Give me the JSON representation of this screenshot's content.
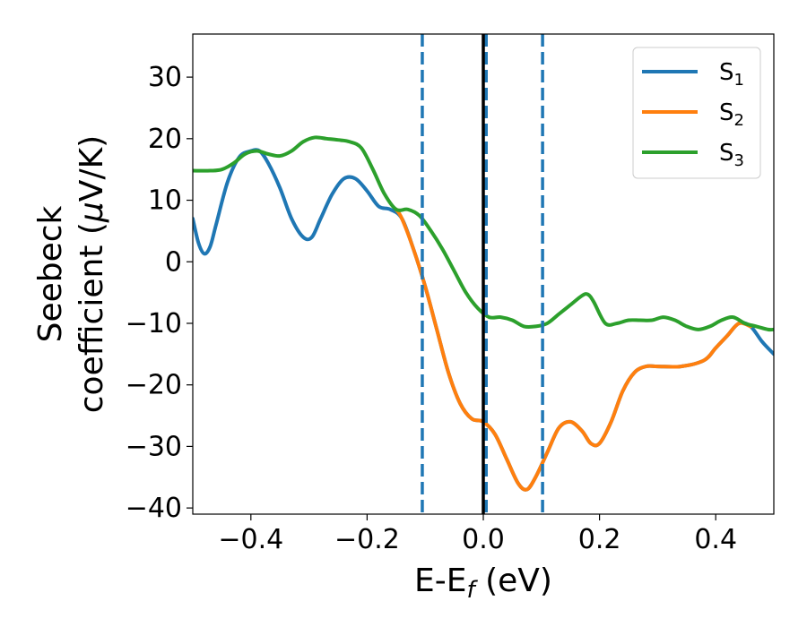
{
  "chart_data": {
    "type": "line",
    "title": "",
    "xlabel": "E-E",
    "xlabel_sub": "f",
    "xlabel_unit": " (eV)",
    "ylabel_line1": "Seebeck",
    "ylabel_line2": "coefficient  (",
    "ylabel_mu": "μ",
    "ylabel_unit": "V/K)",
    "xlim": [
      -0.5,
      0.5
    ],
    "ylim": [
      -41,
      37
    ],
    "xticks": [
      -0.4,
      -0.2,
      0.0,
      0.2,
      0.4
    ],
    "xtick_labels": [
      "−0.4",
      "−0.2",
      "0.0",
      "0.2",
      "0.4"
    ],
    "yticks": [
      -40,
      -30,
      -20,
      -10,
      0,
      10,
      20,
      30
    ],
    "ytick_labels": [
      "−40",
      "−30",
      "−20",
      "−10",
      "0",
      "10",
      "20",
      "30"
    ],
    "grid": false,
    "legend_position": "top-right",
    "vlines": [
      {
        "x": -0.105,
        "style": "dashed",
        "color": "#1f77b4"
      },
      {
        "x": 0.005,
        "style": "dashed",
        "color": "#1f77b4"
      },
      {
        "x": 0.102,
        "style": "dashed",
        "color": "#1f77b4"
      },
      {
        "x": 0.0,
        "style": "solid",
        "color": "#000000"
      }
    ],
    "series": [
      {
        "name": "S",
        "sub": "1",
        "color": "#1f77b4",
        "x": [
          -0.5,
          -0.49,
          -0.48,
          -0.47,
          -0.46,
          -0.44,
          -0.42,
          -0.4,
          -0.385,
          -0.37,
          -0.35,
          -0.33,
          -0.31,
          -0.295,
          -0.28,
          -0.26,
          -0.24,
          -0.22,
          -0.2,
          -0.18,
          -0.16,
          -0.14,
          -0.12,
          -0.1,
          -0.08,
          -0.06,
          -0.04,
          -0.02,
          0.0,
          0.02,
          0.04,
          0.06,
          0.075,
          0.09,
          0.11,
          0.13,
          0.15,
          0.17,
          0.185,
          0.2,
          0.22,
          0.24,
          0.26,
          0.28,
          0.3,
          0.34,
          0.38,
          0.4,
          0.42,
          0.44,
          0.46,
          0.48,
          0.5
        ],
        "y": [
          7,
          3,
          1.3,
          2.5,
          6,
          13,
          17,
          18,
          18,
          16,
          12,
          7,
          4,
          4,
          7,
          11,
          13.5,
          13.5,
          11.5,
          9,
          8.5,
          7,
          2,
          -4,
          -11,
          -18,
          -23,
          -25.5,
          -26,
          -28,
          -32,
          -36,
          -37,
          -35,
          -31,
          -27,
          -26,
          -27.5,
          -29.5,
          -29.5,
          -26,
          -21,
          -18,
          -17,
          -17,
          -17,
          -16,
          -14,
          -12,
          -10,
          -10.5,
          -13,
          -15
        ],
        "legend": "S1"
      },
      {
        "name": "S",
        "sub": "2",
        "color": "#ff7f0e",
        "x": [
          -0.15,
          -0.14,
          -0.12,
          -0.1,
          -0.08,
          -0.06,
          -0.04,
          -0.02,
          0.0,
          0.02,
          0.04,
          0.06,
          0.075,
          0.09,
          0.11,
          0.13,
          0.15,
          0.17,
          0.185,
          0.2,
          0.22,
          0.24,
          0.26,
          0.28,
          0.3,
          0.34,
          0.38,
          0.4,
          0.42,
          0.44,
          0.46
        ],
        "y": [
          8.5,
          7,
          2,
          -4,
          -11,
          -18,
          -23,
          -25.5,
          -26,
          -28,
          -32,
          -36,
          -37,
          -35,
          -31,
          -27,
          -26,
          -27.5,
          -29.5,
          -29.5,
          -26,
          -21,
          -18,
          -17,
          -17,
          -17,
          -16,
          -14,
          -12,
          -10,
          -10.5
        ],
        "legend": "S2"
      },
      {
        "name": "S",
        "sub": "3",
        "color": "#2ca02c",
        "x": [
          -0.5,
          -0.47,
          -0.45,
          -0.43,
          -0.41,
          -0.39,
          -0.37,
          -0.35,
          -0.33,
          -0.31,
          -0.29,
          -0.27,
          -0.25,
          -0.23,
          -0.21,
          -0.19,
          -0.17,
          -0.15,
          -0.13,
          -0.11,
          -0.09,
          -0.07,
          -0.05,
          -0.03,
          -0.01,
          0.01,
          0.03,
          0.05,
          0.07,
          0.09,
          0.11,
          0.13,
          0.15,
          0.17,
          0.18,
          0.19,
          0.21,
          0.23,
          0.25,
          0.27,
          0.29,
          0.31,
          0.33,
          0.35,
          0.37,
          0.39,
          0.41,
          0.43,
          0.45,
          0.47,
          0.49,
          0.5
        ],
        "y": [
          14.8,
          14.8,
          15,
          16,
          17.5,
          18,
          17.5,
          17.2,
          18,
          19.5,
          20.2,
          20,
          19.8,
          19.5,
          18.5,
          15,
          11,
          8.5,
          8.5,
          7.5,
          5,
          2,
          -1.5,
          -5,
          -7.5,
          -9,
          -9,
          -9.5,
          -10.5,
          -10.5,
          -10,
          -8.5,
          -7,
          -5.5,
          -5.3,
          -6.5,
          -10,
          -10,
          -9.5,
          -9.5,
          -9.5,
          -9,
          -9.5,
          -10.5,
          -11,
          -10.5,
          -9.5,
          -9,
          -10,
          -10.5,
          -11,
          -11
        ],
        "legend": "S3"
      }
    ]
  }
}
